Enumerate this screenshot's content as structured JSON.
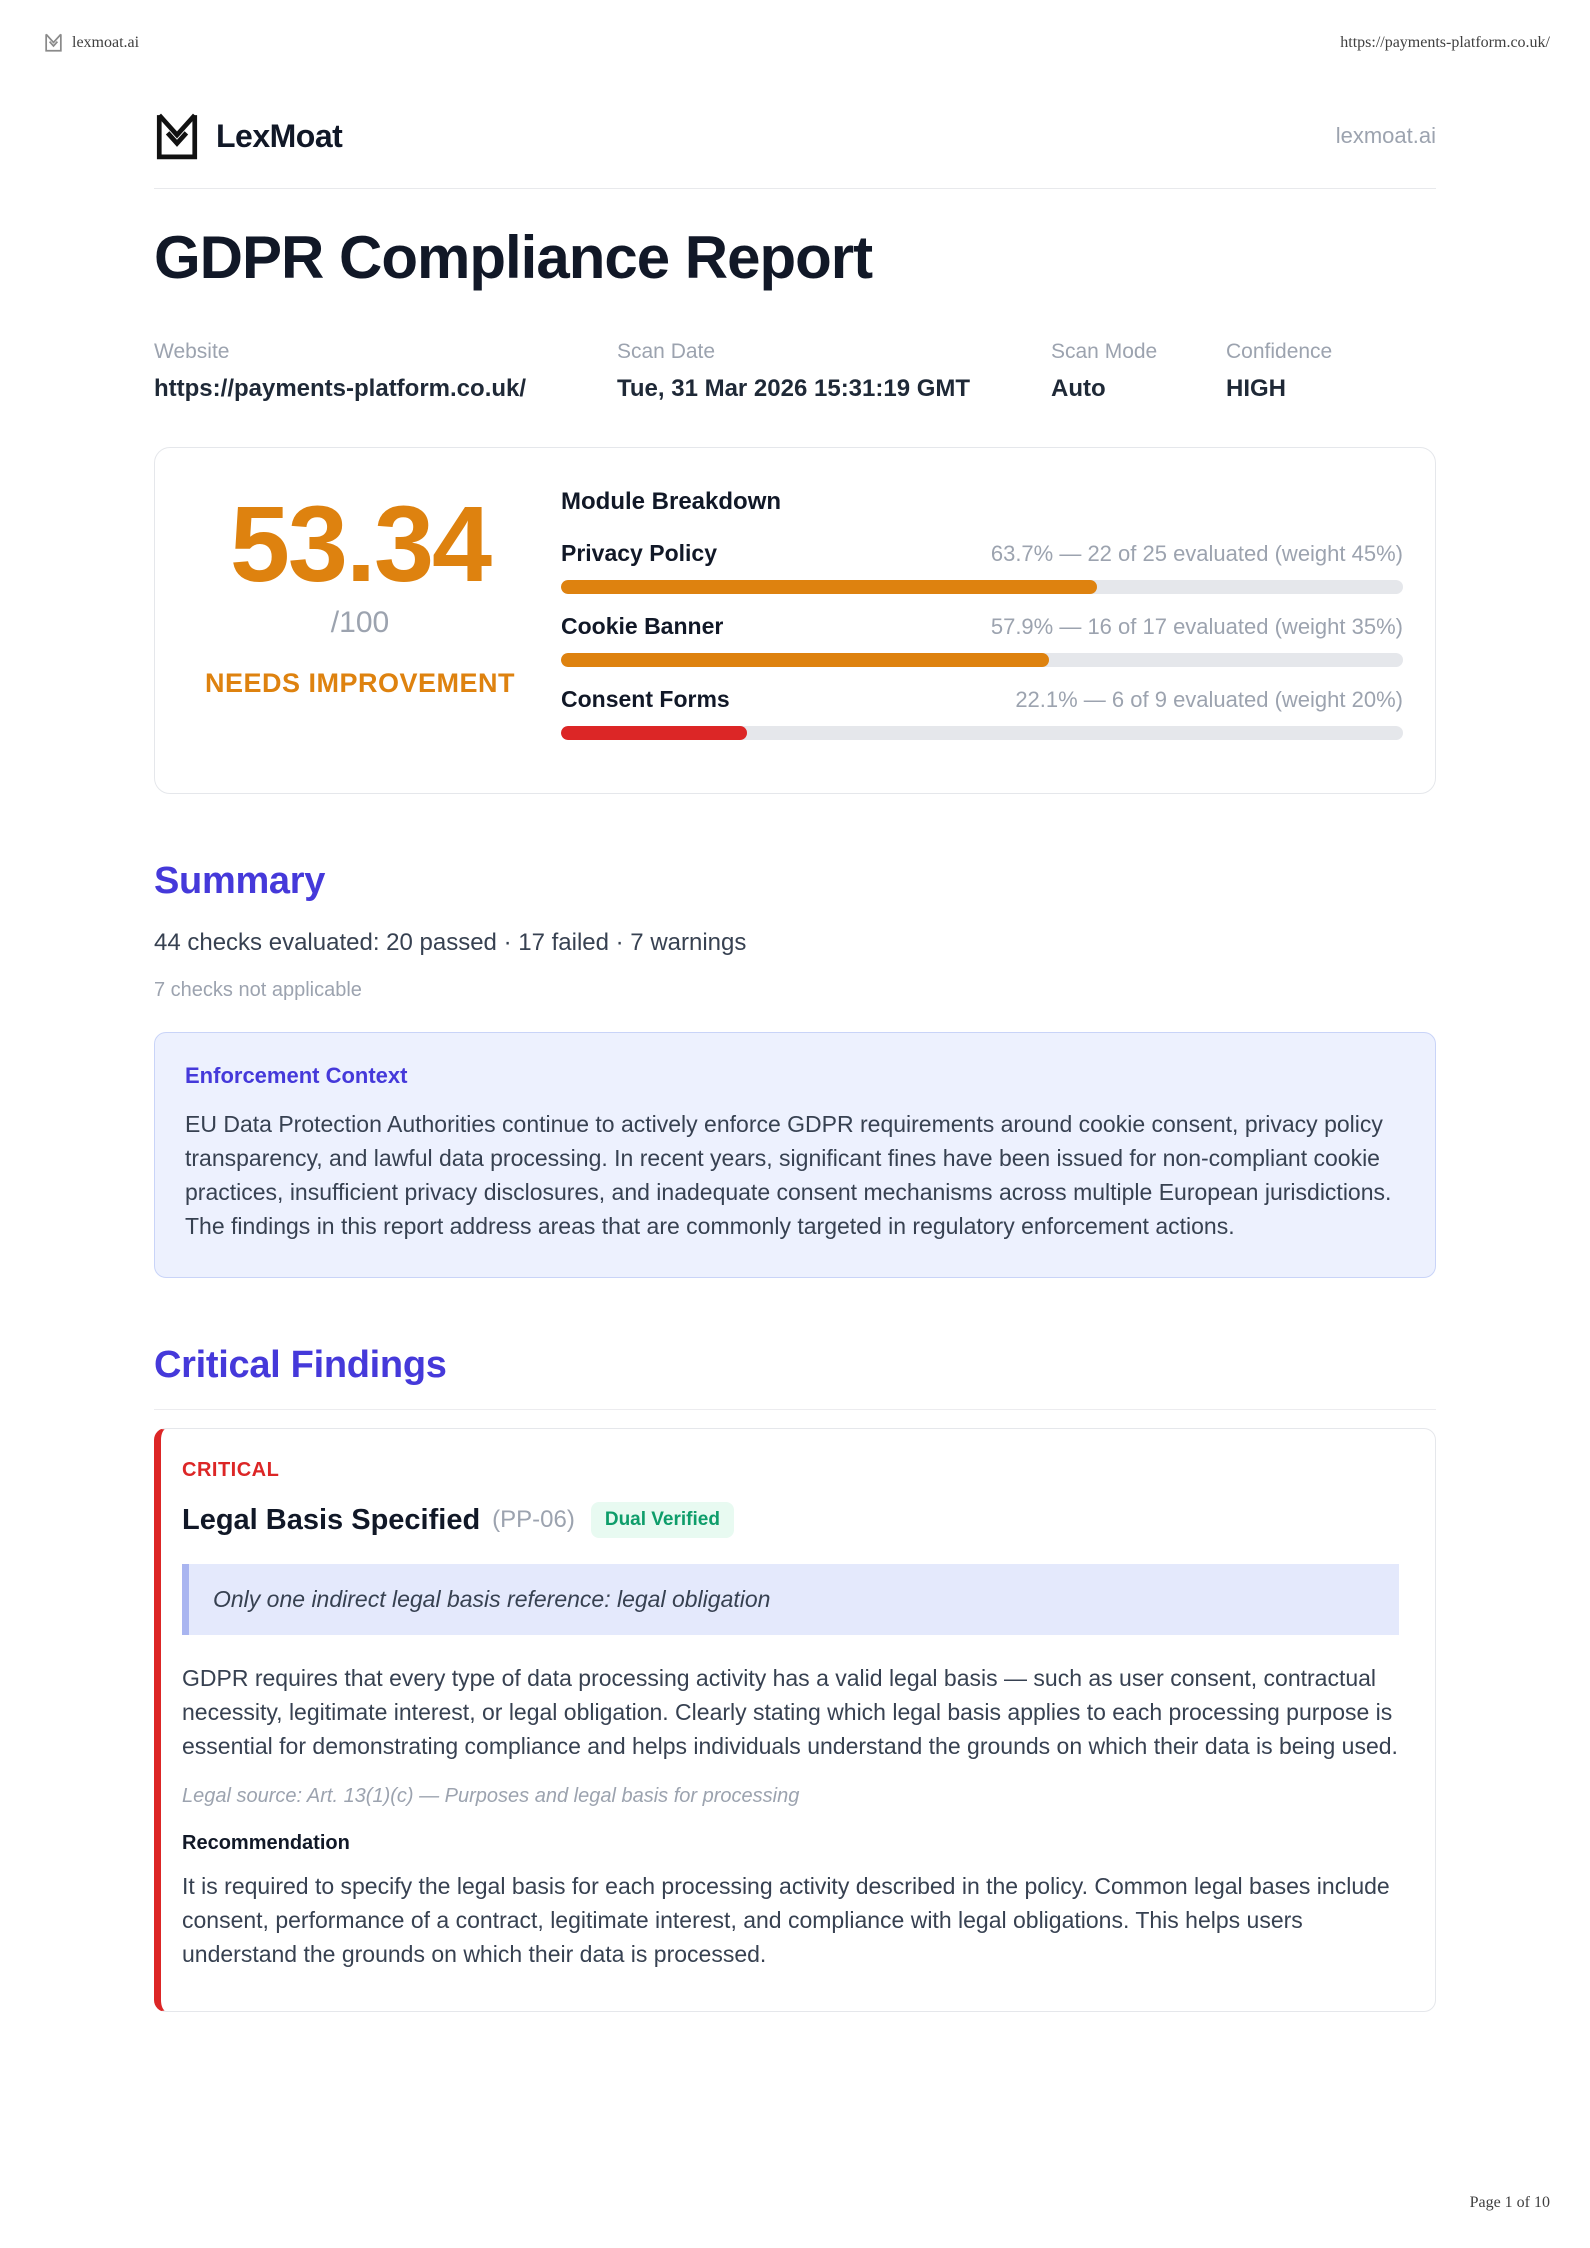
{
  "print_header": {
    "site_label": "lexmoat.ai",
    "url": "https://payments-platform.co.uk/"
  },
  "print_footer": {
    "page_info": "Page 1 of 10"
  },
  "brand": {
    "name": "LexMoat",
    "domain": "lexmoat.ai",
    "logo_icon": "lexmoat-m-shield-logo"
  },
  "report": {
    "title": "GDPR Compliance Report",
    "meta": [
      {
        "label": "Website",
        "value": "https://payments-platform.co.uk/"
      },
      {
        "label": "Scan Date",
        "value": "Tue, 31 Mar 2026 15:31:19 GMT"
      },
      {
        "label": "Scan Mode",
        "value": "Auto"
      },
      {
        "label": "Confidence",
        "value": "HIGH"
      }
    ]
  },
  "score_card": {
    "score": "53.34",
    "denominator": "/100",
    "grade": "NEEDS IMPROVEMENT",
    "breakdown_title": "Module Breakdown",
    "modules": [
      {
        "name": "Privacy Policy",
        "stats": "63.7% — 22 of 25 evaluated (weight 45%)",
        "percent": 63.7,
        "color": "#de820f"
      },
      {
        "name": "Cookie Banner",
        "stats": "57.9% — 16 of 17 evaluated (weight 35%)",
        "percent": 57.9,
        "color": "#de820f"
      },
      {
        "name": "Consent Forms",
        "stats": "22.1% — 6 of 9 evaluated (weight 20%)",
        "percent": 22.1,
        "color": "#dc2626"
      }
    ]
  },
  "summary": {
    "heading": "Summary",
    "stats_line": "44 checks evaluated: 20 passed · 17 failed · 7 warnings",
    "not_applicable": "7 checks not applicable"
  },
  "enforcement": {
    "heading": "Enforcement Context",
    "body": "EU Data Protection Authorities continue to actively enforce GDPR requirements around cookie consent, privacy policy transparency, and lawful data processing. In recent years, significant fines have been issued for non-compliant cookie practices, insufficient privacy disclosures, and inadequate consent mechanisms across multiple European jurisdictions. The findings in this report address areas that are commonly targeted in regulatory enforcement actions."
  },
  "critical_findings": {
    "heading": "Critical Findings",
    "findings": [
      {
        "severity": "CRITICAL",
        "title": "Legal Basis Specified",
        "code": "(PP-06)",
        "badge": "Dual Verified",
        "flag": "Only one indirect legal basis reference: legal obligation",
        "description": "GDPR requires that every type of data processing activity has a valid legal basis — such as user consent, contractual necessity, legitimate interest, or legal obligation. Clearly stating which legal basis applies to each processing purpose is essential for demonstrating compliance and helps individuals understand the grounds on which their data is being used.",
        "legal_source": "Legal source: Art. 13(1)(c) — Purposes and legal basis for processing",
        "recommendation_label": "Recommendation",
        "recommendation": "It is required to specify the legal basis for each processing activity described in the policy. Common legal bases include consent, performance of a contract, legitimate interest, and compliance with legal obligations. This helps users understand the grounds on which their data is processed."
      }
    ]
  },
  "colors": {
    "accent_heading": "#4539da",
    "score_orange": "#de820f",
    "fail_red": "#dc2626",
    "badge_green_text": "#0e9d6a",
    "badge_green_bg": "#e8faf1",
    "context_bg": "#edf1fe",
    "muted_gray": "#9ca3af"
  }
}
